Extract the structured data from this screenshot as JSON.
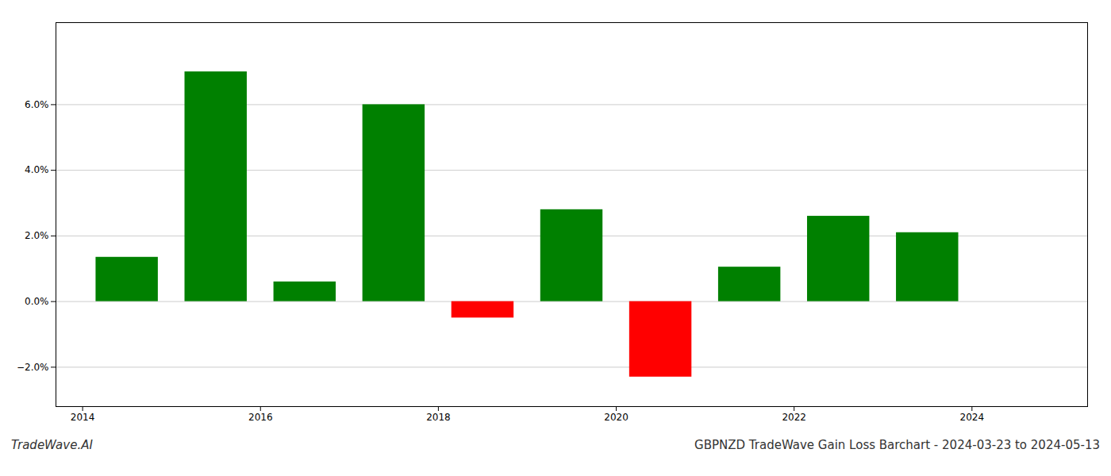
{
  "chart_data": {
    "type": "bar",
    "title": "GBPNZD TradeWave Gain Loss Barchart - 2024-03-23 to 2024-05-13",
    "annotations": [
      "TradeWave.AI"
    ],
    "x": [
      2014,
      2015,
      2016,
      2017,
      2018,
      2019,
      2020,
      2021,
      2022,
      2023
    ],
    "values": [
      0.0135,
      0.07,
      0.006,
      0.06,
      -0.005,
      0.028,
      -0.023,
      0.0105,
      0.026,
      0.021
    ],
    "colors": [
      "#008000",
      "#008000",
      "#008000",
      "#008000",
      "#ff0000",
      "#008000",
      "#ff0000",
      "#008000",
      "#008000",
      "#008000"
    ],
    "xlim": [
      2013.2,
      2024.8
    ],
    "xticks": [
      {
        "value": 2013.5,
        "label": "2014"
      },
      {
        "value": 2015.5,
        "label": "2016"
      },
      {
        "value": 2017.5,
        "label": "2018"
      },
      {
        "value": 2019.5,
        "label": "2020"
      },
      {
        "value": 2021.5,
        "label": "2022"
      },
      {
        "value": 2023.5,
        "label": "2024"
      }
    ],
    "ylim": [
      -0.032,
      0.085
    ],
    "yticks": [
      {
        "value": -0.02,
        "label": "−2.0%"
      },
      {
        "value": 0.0,
        "label": "0.0%"
      },
      {
        "value": 0.02,
        "label": "2.0%"
      },
      {
        "value": 0.04,
        "label": "4.0%"
      },
      {
        "value": 0.06,
        "label": "6.0%"
      }
    ],
    "grid": true
  }
}
